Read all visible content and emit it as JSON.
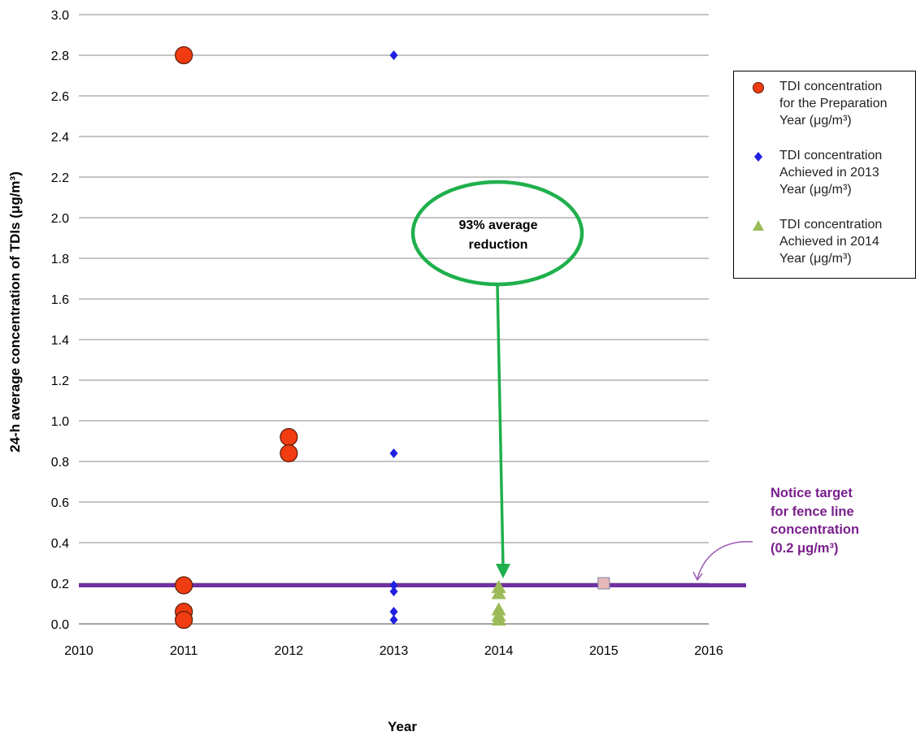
{
  "chart_data": {
    "type": "scatter",
    "xlabel": "Year",
    "ylabel": "24-h average concentration of TDIs (μg/m³)",
    "xlim": [
      2010,
      2016
    ],
    "ylim": [
      0,
      3.0
    ],
    "x_ticks": [
      "2010",
      "2011",
      "2012",
      "2013",
      "2014",
      "2015",
      "2016"
    ],
    "y_ticks": [
      "0.0",
      "0.2",
      "0.4",
      "0.6",
      "0.8",
      "1.0",
      "1.2",
      "1.4",
      "1.6",
      "1.8",
      "2.0",
      "2.2",
      "2.4",
      "2.6",
      "2.8",
      "3.0"
    ],
    "grid": "horizontal",
    "legend_position": "right",
    "series": [
      {
        "name": "TDI concentration for the Preparation Year (μg/m³)",
        "marker": "circle",
        "color": "#f03c10",
        "points": [
          [
            2011,
            2.8
          ],
          [
            2011,
            0.19
          ],
          [
            2011,
            0.06
          ],
          [
            2011,
            0.02
          ],
          [
            2012,
            0.92
          ],
          [
            2012,
            0.84
          ]
        ]
      },
      {
        "name": "TDI concentration Achieved in 2013 Year (μg/m³)",
        "marker": "diamond",
        "color": "#1f20e0",
        "points": [
          [
            2013,
            2.8
          ],
          [
            2013,
            0.84
          ],
          [
            2013,
            0.19
          ],
          [
            2013,
            0.16
          ],
          [
            2013,
            0.06
          ],
          [
            2013,
            0.02
          ]
        ]
      },
      {
        "name": "TDI concentration Achieved in 2014 Year (μg/m³)",
        "marker": "triangle",
        "color": "#9bbb59",
        "points": [
          [
            2014,
            0.18
          ],
          [
            2014,
            0.15
          ],
          [
            2014,
            0.07
          ],
          [
            2014,
            0.04
          ],
          [
            2014,
            0.02
          ]
        ]
      },
      {
        "name": "",
        "marker": "square",
        "color": "#e6b9b8",
        "points": [
          [
            2015,
            0.2
          ]
        ]
      }
    ],
    "target_line": {
      "y": 0.19,
      "color": "#7030a0"
    },
    "annotations": {
      "reduction": {
        "text": "93% average reduction",
        "color": "#1fb04c"
      },
      "target": {
        "text": "Notice target\nfor fence line\nconcentration\n(0.2 μg/m³)",
        "color": "#7a1f8c"
      }
    }
  },
  "legend": [
    {
      "label": "TDI concentration\nfor the Preparation\nYear (μg/m³)"
    },
    {
      "label": "TDI concentration\nAchieved in 2013\nYear (μg/m³)"
    },
    {
      "label": "TDI concentration\nAchieved in 2014\nYear (μg/m³)"
    }
  ]
}
